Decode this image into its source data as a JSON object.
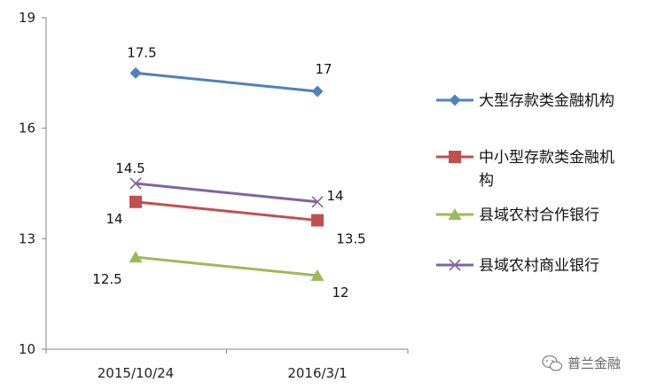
{
  "chart_data": {
    "type": "line",
    "categories": [
      "2015/10/24",
      "2016/3/1"
    ],
    "ylim": [
      10,
      19
    ],
    "yticks": [
      10,
      13,
      16,
      19
    ],
    "grid": false,
    "legend_position": "right",
    "series": [
      {
        "name": "大型存款类金融机构",
        "values": [
          17.5,
          17
        ],
        "labels": [
          "17.5",
          "17"
        ],
        "color": "#4F81BD",
        "marker": "diamond"
      },
      {
        "name": "中小型存款类金融机构",
        "values": [
          14,
          13.5
        ],
        "labels": [
          "14",
          "13.5"
        ],
        "color": "#C0504D",
        "marker": "square"
      },
      {
        "name": "县域农村合作银行",
        "values": [
          12.5,
          12
        ],
        "labels": [
          "12.5",
          "12"
        ],
        "color": "#9BBB59",
        "marker": "triangle"
      },
      {
        "name": "县域农村商业银行",
        "values": [
          14.5,
          14
        ],
        "labels": [
          "14.5",
          "14"
        ],
        "color": "#8064A2",
        "marker": "x"
      }
    ]
  },
  "watermark": {
    "text": "普兰金融",
    "icon": "wechat-icon"
  }
}
